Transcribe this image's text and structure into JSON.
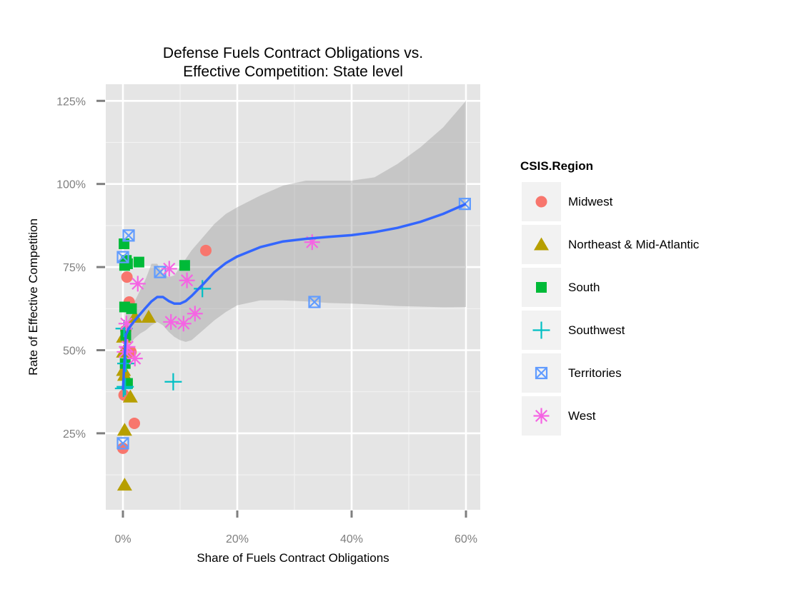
{
  "chart_data": {
    "type": "scatter",
    "title": [
      "Defense Fuels Contract Obligations vs.",
      "Effective Competition: State level"
    ],
    "xlabel": "Share of Fuels Contract Obligations",
    "ylabel": "Rate of Effective Competition",
    "xlim": [
      -3,
      62.5
    ],
    "ylim": [
      2,
      130
    ],
    "x_ticks": [
      0,
      20,
      40,
      60
    ],
    "x_tick_labels": [
      "0%",
      "20%",
      "40%",
      "60%"
    ],
    "y_ticks": [
      25,
      50,
      75,
      100,
      125
    ],
    "y_tick_labels": [
      "25%",
      "50%",
      "75%",
      "100%",
      "125%"
    ],
    "grid": true,
    "legend": {
      "title": "CSIS.Region",
      "position": "right",
      "entries": [
        {
          "label": "Midwest",
          "shape": "circle",
          "color": "#F8766D"
        },
        {
          "label": "Northeast & Mid-Atlantic",
          "shape": "triangle",
          "color": "#B79F00"
        },
        {
          "label": "South",
          "shape": "square",
          "color": "#00BA38"
        },
        {
          "label": "Southwest",
          "shape": "plus",
          "color": "#00BFC4"
        },
        {
          "label": "Territories",
          "shape": "boxcross",
          "color": "#619CFF"
        },
        {
          "label": "West",
          "shape": "asterisk",
          "color": "#F564E3"
        }
      ]
    },
    "series": [
      {
        "name": "Midwest",
        "points": [
          [
            0.7,
            72
          ],
          [
            1.1,
            64.5
          ],
          [
            1.4,
            49.5
          ],
          [
            0.5,
            56
          ],
          [
            0.2,
            36.5
          ],
          [
            0,
            20.5
          ],
          [
            2.0,
            28
          ],
          [
            14.5,
            80
          ]
        ]
      },
      {
        "name": "Northeast & Mid-Atlantic",
        "points": [
          [
            0.1,
            54
          ],
          [
            0.1,
            49.5
          ],
          [
            0.1,
            44
          ],
          [
            0.3,
            42.5
          ],
          [
            1.3,
            36
          ],
          [
            0.3,
            26
          ],
          [
            0.3,
            9.5
          ],
          [
            4.5,
            60
          ],
          [
            2.1,
            60
          ]
        ]
      },
      {
        "name": "South",
        "points": [
          [
            0.2,
            82
          ],
          [
            0.3,
            75.5
          ],
          [
            0.6,
            77
          ],
          [
            0.8,
            76
          ],
          [
            2.8,
            76.5
          ],
          [
            10.8,
            75.5
          ],
          [
            0.3,
            63
          ],
          [
            1.5,
            62.5
          ],
          [
            0.5,
            54.5
          ],
          [
            0.4,
            46
          ],
          [
            0.8,
            40
          ]
        ]
      },
      {
        "name": "Southwest",
        "points": [
          [
            0.2,
            56.5
          ],
          [
            0.4,
            39
          ],
          [
            0.1,
            38.5
          ],
          [
            0.5,
            46
          ],
          [
            8.8,
            40.5
          ],
          [
            13.9,
            68.5
          ]
        ]
      },
      {
        "name": "Territories",
        "points": [
          [
            0,
            78
          ],
          [
            1,
            84.5
          ],
          [
            6.5,
            73.5
          ],
          [
            33.5,
            64.5
          ],
          [
            59.8,
            94
          ],
          [
            0,
            22
          ]
        ]
      },
      {
        "name": "West",
        "points": [
          [
            2.6,
            70
          ],
          [
            8.1,
            74.5
          ],
          [
            11.2,
            71
          ],
          [
            8.4,
            58.5
          ],
          [
            10.6,
            58
          ],
          [
            12.6,
            61
          ],
          [
            33.1,
            82.5
          ],
          [
            0.8,
            51
          ],
          [
            2.1,
            47.5
          ],
          [
            0.3,
            49.5
          ],
          [
            0.6,
            58
          ]
        ]
      }
    ],
    "smooth": {
      "color": "#3366FF",
      "x": [
        0,
        0.5,
        1,
        2,
        3,
        4,
        5,
        6,
        7,
        8,
        9,
        10,
        11,
        12,
        14,
        16,
        18,
        20,
        24,
        28,
        32,
        36,
        40,
        44,
        48,
        52,
        56,
        60
      ],
      "y": [
        38,
        54.5,
        56.5,
        58.8,
        60.8,
        62.8,
        64.7,
        66,
        66,
        64.8,
        64,
        64,
        64.8,
        66.3,
        69.8,
        73.5,
        76.2,
        78.2,
        81,
        82.7,
        83.5,
        84.1,
        84.6,
        85.5,
        86.8,
        88.6,
        91,
        94
      ],
      "ci_lower": [
        33,
        48,
        51,
        53.5,
        55,
        56,
        57.5,
        58.5,
        57.5,
        55.5,
        54,
        53,
        52.5,
        53,
        56,
        59,
        61.5,
        63.5,
        65,
        65,
        64.7,
        64.2,
        64,
        63.7,
        63.3,
        63.1,
        62.9,
        63
      ],
      "ci_upper": [
        43,
        61,
        62,
        64.5,
        68,
        71.5,
        76,
        76,
        73,
        72,
        72.5,
        75,
        77.5,
        80,
        84,
        88,
        91,
        93,
        96.5,
        99.5,
        101,
        101,
        101,
        102,
        106,
        111,
        117,
        125
      ]
    }
  }
}
